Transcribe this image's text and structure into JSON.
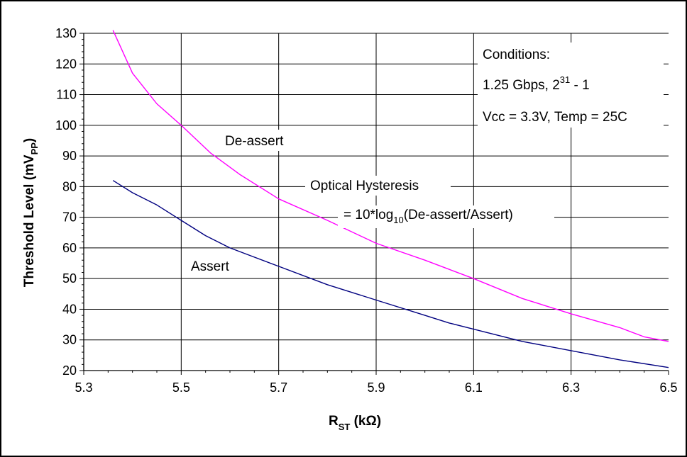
{
  "chart_data": {
    "type": "line",
    "x_axis": {
      "label_main": "R",
      "label_sub": "ST",
      "label_unit": " (kΩ)",
      "range": [
        5.3,
        6.5
      ],
      "ticks": [
        5.3,
        5.5,
        5.7,
        5.9,
        6.1,
        6.3,
        6.5
      ],
      "tick_labels": [
        "5.3",
        "5.5",
        "5.7",
        "5.9",
        "6.1",
        "6.3",
        "6.5"
      ]
    },
    "y_axis": {
      "label_main": "Threshold Level (mV",
      "label_sub": "PP",
      "label_close": ")",
      "range": [
        20,
        130
      ],
      "ticks": [
        20,
        30,
        40,
        50,
        60,
        70,
        80,
        90,
        100,
        110,
        120,
        130
      ],
      "tick_labels": [
        "20",
        "30",
        "40",
        "50",
        "60",
        "70",
        "80",
        "90",
        "100",
        "110",
        "120",
        "130"
      ]
    },
    "grid": true,
    "series": [
      {
        "name": "De-assert",
        "color": "#ff00ff",
        "x": [
          5.36,
          5.4,
          5.45,
          5.5,
          5.56,
          5.62,
          5.7,
          5.8,
          5.9,
          6.0,
          6.05,
          6.1,
          6.2,
          6.3,
          6.4,
          6.45,
          6.5
        ],
        "y": [
          131,
          117,
          107,
          100,
          91,
          84,
          76,
          69,
          61.5,
          56,
          53,
          50,
          43.5,
          38.5,
          34,
          31,
          29.5
        ]
      },
      {
        "name": "Assert",
        "color": "#000080",
        "x": [
          5.36,
          5.4,
          5.45,
          5.5,
          5.55,
          5.6,
          5.7,
          5.8,
          5.9,
          6.0,
          6.05,
          6.1,
          6.2,
          6.3,
          6.4,
          6.5
        ],
        "y": [
          82,
          78,
          74,
          69,
          64,
          60,
          54,
          48,
          43,
          38,
          35.5,
          33.5,
          29.5,
          26.5,
          23.5,
          21
        ]
      }
    ],
    "annotations": {
      "conditions_title": "Conditions:",
      "conditions_rate_main": "1.25 Gbps, 2",
      "conditions_rate_sup": "31",
      "conditions_rate_tail": " - 1",
      "conditions_env": "Vcc = 3.3V, Temp = 25C",
      "deassert_label": "De-assert",
      "assert_label": "Assert",
      "hysteresis_title": "Optical Hysteresis",
      "hysteresis_eq_main": "= 10*log",
      "hysteresis_eq_sub": "10",
      "hysteresis_eq_tail": "(De-assert/Assert)"
    }
  }
}
